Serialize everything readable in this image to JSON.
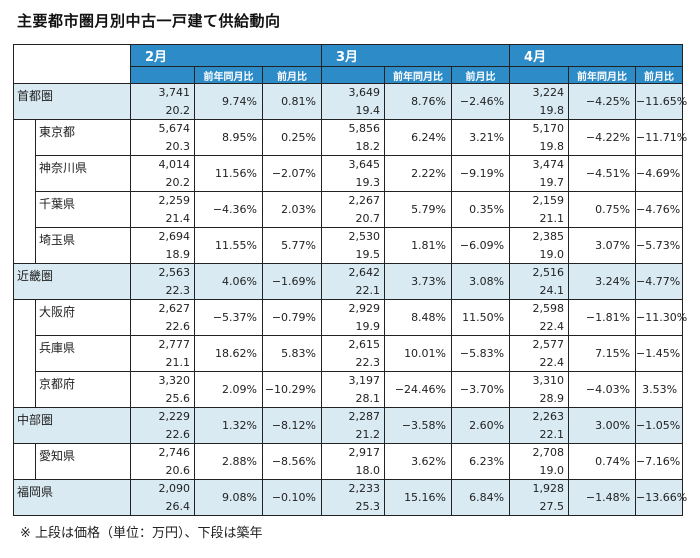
{
  "title": "主要都市圏月別中古一戸建て供給動向",
  "note": "※ 上段は価格（単位：万円）、下段は築年",
  "months": [
    "2月",
    "3月",
    "4月"
  ],
  "sub_headers": {
    "yoy": "前年同月比",
    "mom": "前月比"
  },
  "rows": [
    {
      "name": "首都圏",
      "level": 1,
      "cells": [
        {
          "price": "3,741",
          "age": "20.2",
          "yoy": "9.74%",
          "mom": "0.81%"
        },
        {
          "price": "3,649",
          "age": "19.4",
          "yoy": "8.76%",
          "mom": "−2.46%"
        },
        {
          "price": "3,224",
          "age": "19.8",
          "yoy": "−4.25%",
          "mom": "−11.65%"
        }
      ]
    },
    {
      "name": "東京都",
      "level": 2,
      "cells": [
        {
          "price": "5,674",
          "age": "20.3",
          "yoy": "8.95%",
          "mom": "0.25%"
        },
        {
          "price": "5,856",
          "age": "18.2",
          "yoy": "6.24%",
          "mom": "3.21%"
        },
        {
          "price": "5,170",
          "age": "19.8",
          "yoy": "−4.22%",
          "mom": "−11.71%"
        }
      ]
    },
    {
      "name": "神奈川県",
      "level": 2,
      "cells": [
        {
          "price": "4,014",
          "age": "20.2",
          "yoy": "11.56%",
          "mom": "−2.07%"
        },
        {
          "price": "3,645",
          "age": "19.3",
          "yoy": "2.22%",
          "mom": "−9.19%"
        },
        {
          "price": "3,474",
          "age": "19.7",
          "yoy": "−4.51%",
          "mom": "−4.69%"
        }
      ]
    },
    {
      "name": "千葉県",
      "level": 2,
      "cells": [
        {
          "price": "2,259",
          "age": "21.4",
          "yoy": "−4.36%",
          "mom": "2.03%"
        },
        {
          "price": "2,267",
          "age": "20.7",
          "yoy": "5.79%",
          "mom": "0.35%"
        },
        {
          "price": "2,159",
          "age": "21.1",
          "yoy": "0.75%",
          "mom": "−4.76%"
        }
      ]
    },
    {
      "name": "埼玉県",
      "level": 2,
      "cells": [
        {
          "price": "2,694",
          "age": "18.9",
          "yoy": "11.55%",
          "mom": "5.77%"
        },
        {
          "price": "2,530",
          "age": "19.5",
          "yoy": "1.81%",
          "mom": "−6.09%"
        },
        {
          "price": "2,385",
          "age": "19.0",
          "yoy": "3.07%",
          "mom": "−5.73%"
        }
      ]
    },
    {
      "name": "近畿圏",
      "level": 1,
      "cells": [
        {
          "price": "2,563",
          "age": "22.3",
          "yoy": "4.06%",
          "mom": "−1.69%"
        },
        {
          "price": "2,642",
          "age": "22.1",
          "yoy": "3.73%",
          "mom": "3.08%"
        },
        {
          "price": "2,516",
          "age": "24.1",
          "yoy": "3.24%",
          "mom": "−4.77%"
        }
      ]
    },
    {
      "name": "大阪府",
      "level": 2,
      "cells": [
        {
          "price": "2,627",
          "age": "22.6",
          "yoy": "−5.37%",
          "mom": "−0.79%"
        },
        {
          "price": "2,929",
          "age": "19.9",
          "yoy": "8.48%",
          "mom": "11.50%"
        },
        {
          "price": "2,598",
          "age": "22.4",
          "yoy": "−1.81%",
          "mom": "−11.30%"
        }
      ]
    },
    {
      "name": "兵庫県",
      "level": 2,
      "cells": [
        {
          "price": "2,777",
          "age": "21.1",
          "yoy": "18.62%",
          "mom": "5.83%"
        },
        {
          "price": "2,615",
          "age": "22.3",
          "yoy": "10.01%",
          "mom": "−5.83%"
        },
        {
          "price": "2,577",
          "age": "22.4",
          "yoy": "7.15%",
          "mom": "−1.45%"
        }
      ]
    },
    {
      "name": "京都府",
      "level": 2,
      "cells": [
        {
          "price": "3,320",
          "age": "25.6",
          "yoy": "2.09%",
          "mom": "−10.29%"
        },
        {
          "price": "3,197",
          "age": "28.1",
          "yoy": "−24.46%",
          "mom": "−3.70%"
        },
        {
          "price": "3,310",
          "age": "28.9",
          "yoy": "−4.03%",
          "mom": "3.53%"
        }
      ]
    },
    {
      "name": "中部圏",
      "level": 1,
      "cells": [
        {
          "price": "2,229",
          "age": "22.6",
          "yoy": "1.32%",
          "mom": "−8.12%"
        },
        {
          "price": "2,287",
          "age": "21.2",
          "yoy": "−3.58%",
          "mom": "2.60%"
        },
        {
          "price": "2,263",
          "age": "22.1",
          "yoy": "3.00%",
          "mom": "−1.05%"
        }
      ]
    },
    {
      "name": "愛知県",
      "level": 2,
      "cells": [
        {
          "price": "2,746",
          "age": "20.6",
          "yoy": "2.88%",
          "mom": "−8.56%"
        },
        {
          "price": "2,917",
          "age": "18.0",
          "yoy": "3.62%",
          "mom": "6.23%"
        },
        {
          "price": "2,708",
          "age": "19.0",
          "yoy": "0.74%",
          "mom": "−7.16%"
        }
      ]
    },
    {
      "name": "福岡県",
      "level": 1,
      "cells": [
        {
          "price": "2,090",
          "age": "26.4",
          "yoy": "9.08%",
          "mom": "−0.10%"
        },
        {
          "price": "2,233",
          "age": "25.3",
          "yoy": "15.16%",
          "mom": "6.84%"
        },
        {
          "price": "1,928",
          "age": "27.5",
          "yoy": "−1.48%",
          "mom": "−13.66%"
        }
      ]
    }
  ]
}
